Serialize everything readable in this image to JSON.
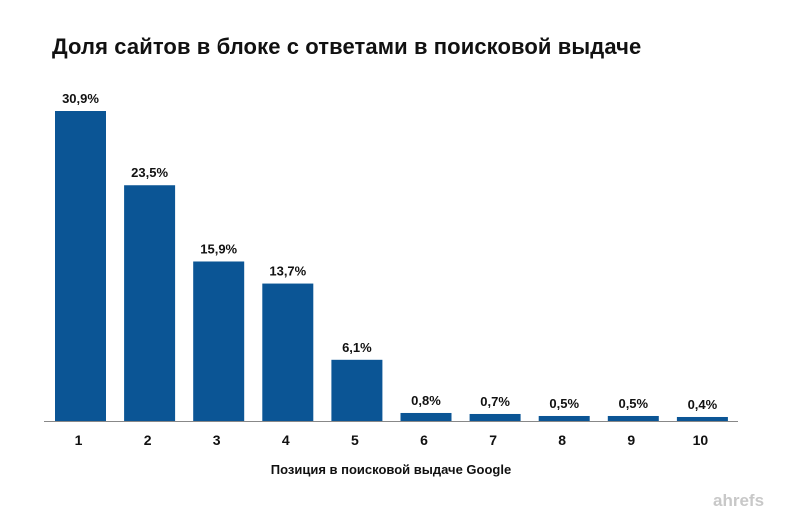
{
  "chart_data": {
    "type": "bar",
    "title": "Доля сайтов в блоке с ответами в поисковой выдаче",
    "xlabel": "Позиция в поисковой выдаче Google",
    "ylabel": "",
    "categories": [
      "1",
      "2",
      "3",
      "4",
      "5",
      "6",
      "7",
      "8",
      "9",
      "10"
    ],
    "values": [
      30.9,
      23.5,
      15.9,
      13.7,
      6.1,
      0.8,
      0.7,
      0.5,
      0.5,
      0.4
    ],
    "value_labels": [
      "30,9%",
      "23,5%",
      "15,9%",
      "13,7%",
      "6,1%",
      "0,8%",
      "0,7%",
      "0,5%",
      "0,5%",
      "0,4%"
    ],
    "ylim": [
      0,
      31
    ],
    "grid": false,
    "legend": "none",
    "bar_color": "#0b5595",
    "axis_color": "#888888"
  },
  "watermark": "ahrefs"
}
